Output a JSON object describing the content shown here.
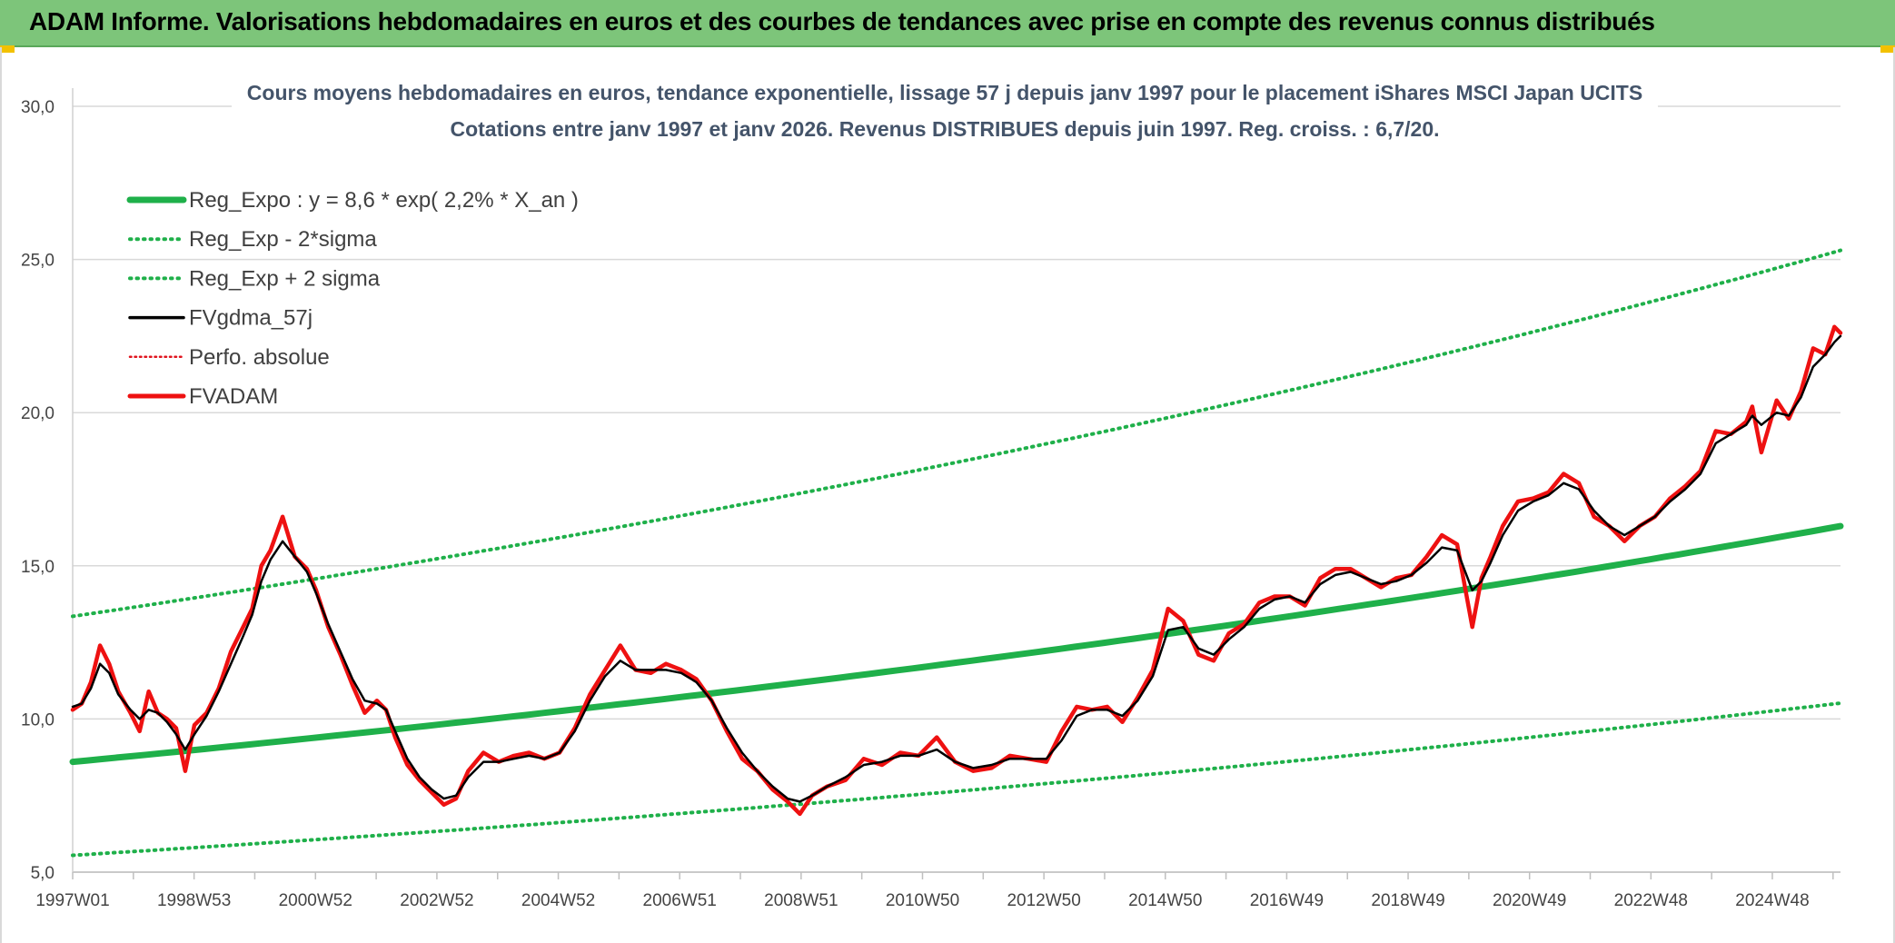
{
  "header": {
    "title": "ADAM Informe. Valorisations hebdomadaires en euros et des courbes de tendances avec prise en compte des revenus connus distribués"
  },
  "chart_data": {
    "type": "line",
    "title": "Cours moyens hebdomadaires en euros, tendance exponentielle, lissage 57 j depuis janv 1997 pour le placement iShares MSCI Japan UCITS",
    "subtitle": "Cotations entre janv 1997 et janv 2026. Revenus DISTRIBUES depuis juin 1997. Reg. croiss. : 6,7/20.",
    "xlabel": "",
    "ylabel": "",
    "ylim": [
      5.0,
      30.0
    ],
    "xlim": [
      1997.0,
      2026.05
    ],
    "y_ticks": [
      "5,0",
      "10,0",
      "15,0",
      "20,0",
      "25,0",
      "30,0"
    ],
    "x_tick_labels": [
      "1997W01",
      "1998W53",
      "2000W52",
      "2002W52",
      "2004W52",
      "2006W51",
      "2008W51",
      "2010W50",
      "2012W50",
      "2014W50",
      "2016W49",
      "2018W49",
      "2020W49",
      "2022W48",
      "2024W48"
    ],
    "grid": true,
    "legend_placement": "top-left",
    "series": [
      {
        "name": "Reg_Expo : y = 8,6 * exp( 2,2% *  X_an )",
        "kind": "exponential",
        "a": 8.6,
        "rate": 0.022,
        "color": "#1fb04a",
        "style": "solid-thick"
      },
      {
        "name": "Reg_Exp - 2*sigma",
        "kind": "exponential",
        "a": 5.55,
        "rate": 0.022,
        "color": "#1fb04a",
        "style": "dotted"
      },
      {
        "name": "Reg_Exp + 2 sigma",
        "kind": "exponential",
        "a": 13.35,
        "rate": 0.022,
        "color": "#1fb04a",
        "style": "dotted"
      },
      {
        "name": "FVgdma_57j",
        "kind": "smoothed",
        "color": "#000000",
        "style": "solid"
      },
      {
        "name": "Perfo. absolue",
        "kind": "none",
        "color": "#e0141e",
        "style": "dotted-thin"
      },
      {
        "name": "FVADAM",
        "kind": "data",
        "color": "#ee1111",
        "style": "solid-thick",
        "x": [
          1997.0,
          1997.15,
          1997.3,
          1997.45,
          1997.6,
          1997.75,
          1997.95,
          1998.1,
          1998.25,
          1998.4,
          1998.55,
          1998.7,
          1998.85,
          1999.0,
          1999.2,
          1999.4,
          1999.6,
          1999.8,
          1999.95,
          2000.1,
          2000.25,
          2000.45,
          2000.65,
          2000.85,
          2001.0,
          2001.2,
          2001.4,
          2001.6,
          2001.8,
          2002.0,
          2002.15,
          2002.3,
          2002.5,
          2002.7,
          2002.9,
          2003.1,
          2003.3,
          2003.5,
          2003.75,
          2004.0,
          2004.25,
          2004.5,
          2004.75,
          2005.0,
          2005.25,
          2005.5,
          2005.75,
          2006.0,
          2006.25,
          2006.5,
          2006.75,
          2007.0,
          2007.25,
          2007.5,
          2007.75,
          2008.0,
          2008.25,
          2008.5,
          2008.75,
          2008.95,
          2009.15,
          2009.4,
          2009.7,
          2010.0,
          2010.3,
          2010.6,
          2010.9,
          2011.2,
          2011.5,
          2011.8,
          2012.1,
          2012.4,
          2012.7,
          2013.0,
          2013.25,
          2013.5,
          2013.75,
          2014.0,
          2014.25,
          2014.5,
          2014.75,
          2015.0,
          2015.25,
          2015.5,
          2015.75,
          2016.0,
          2016.25,
          2016.5,
          2016.75,
          2017.0,
          2017.25,
          2017.5,
          2017.75,
          2018.0,
          2018.25,
          2018.5,
          2018.75,
          2019.0,
          2019.25,
          2019.5,
          2019.75,
          2020.0,
          2020.15,
          2020.3,
          2020.5,
          2020.75,
          2021.0,
          2021.25,
          2021.5,
          2021.75,
          2022.0,
          2022.25,
          2022.5,
          2022.75,
          2023.0,
          2023.25,
          2023.5,
          2023.75,
          2024.0,
          2024.25,
          2024.5,
          2024.6,
          2024.75,
          2025.0,
          2025.2,
          2025.4,
          2025.6,
          2025.8,
          2025.95,
          2026.05
        ],
        "values": [
          10.3,
          10.5,
          11.2,
          12.4,
          11.8,
          10.9,
          10.2,
          9.6,
          10.9,
          10.2,
          10.0,
          9.7,
          8.3,
          9.8,
          10.2,
          11.0,
          12.2,
          13.0,
          13.6,
          15.0,
          15.5,
          16.6,
          15.3,
          14.9,
          14.2,
          13.0,
          12.1,
          11.1,
          10.2,
          10.6,
          10.3,
          9.4,
          8.5,
          8.0,
          7.6,
          7.2,
          7.4,
          8.3,
          8.9,
          8.6,
          8.8,
          8.9,
          8.7,
          8.9,
          9.7,
          10.8,
          11.6,
          12.4,
          11.6,
          11.5,
          11.8,
          11.6,
          11.3,
          10.6,
          9.6,
          8.7,
          8.3,
          7.7,
          7.3,
          6.9,
          7.5,
          7.8,
          8.0,
          8.7,
          8.5,
          8.9,
          8.8,
          9.4,
          8.6,
          8.3,
          8.4,
          8.8,
          8.7,
          8.6,
          9.6,
          10.4,
          10.3,
          10.4,
          9.9,
          10.7,
          11.6,
          13.6,
          13.2,
          12.1,
          11.9,
          12.8,
          13.1,
          13.8,
          14.0,
          14.0,
          13.7,
          14.6,
          14.9,
          14.9,
          14.6,
          14.3,
          14.6,
          14.7,
          15.3,
          16.0,
          15.7,
          13.0,
          14.6,
          15.3,
          16.3,
          17.1,
          17.2,
          17.4,
          18.0,
          17.7,
          16.6,
          16.3,
          15.8,
          16.3,
          16.6,
          17.2,
          17.6,
          18.1,
          19.4,
          19.3,
          19.7,
          20.2,
          18.7,
          20.4,
          19.8,
          20.7,
          22.1,
          21.9,
          22.8,
          22.6
        ],
        "smoothed_values": [
          10.4,
          10.5,
          11.0,
          11.8,
          11.5,
          10.8,
          10.3,
          10.0,
          10.3,
          10.2,
          9.9,
          9.5,
          9.0,
          9.5,
          10.1,
          10.9,
          11.8,
          12.7,
          13.4,
          14.5,
          15.2,
          15.8,
          15.3,
          14.8,
          14.1,
          13.1,
          12.2,
          11.3,
          10.6,
          10.5,
          10.3,
          9.6,
          8.7,
          8.1,
          7.7,
          7.4,
          7.5,
          8.1,
          8.6,
          8.6,
          8.7,
          8.8,
          8.7,
          8.9,
          9.6,
          10.6,
          11.4,
          11.9,
          11.6,
          11.6,
          11.6,
          11.5,
          11.2,
          10.6,
          9.7,
          8.9,
          8.3,
          7.8,
          7.4,
          7.3,
          7.5,
          7.8,
          8.1,
          8.5,
          8.6,
          8.8,
          8.8,
          9.0,
          8.6,
          8.4,
          8.5,
          8.7,
          8.7,
          8.7,
          9.3,
          10.1,
          10.3,
          10.3,
          10.1,
          10.6,
          11.4,
          12.9,
          13.0,
          12.3,
          12.1,
          12.6,
          13.0,
          13.6,
          13.9,
          14.0,
          13.8,
          14.4,
          14.7,
          14.8,
          14.6,
          14.4,
          14.5,
          14.7,
          15.1,
          15.6,
          15.5,
          14.2,
          14.5,
          15.1,
          16.0,
          16.8,
          17.1,
          17.3,
          17.7,
          17.5,
          16.8,
          16.3,
          16.0,
          16.3,
          16.6,
          17.1,
          17.5,
          18.0,
          19.0,
          19.3,
          19.6,
          19.9,
          19.6,
          20.0,
          19.9,
          20.5,
          21.5,
          21.9,
          22.3,
          22.5
        ]
      }
    ]
  }
}
